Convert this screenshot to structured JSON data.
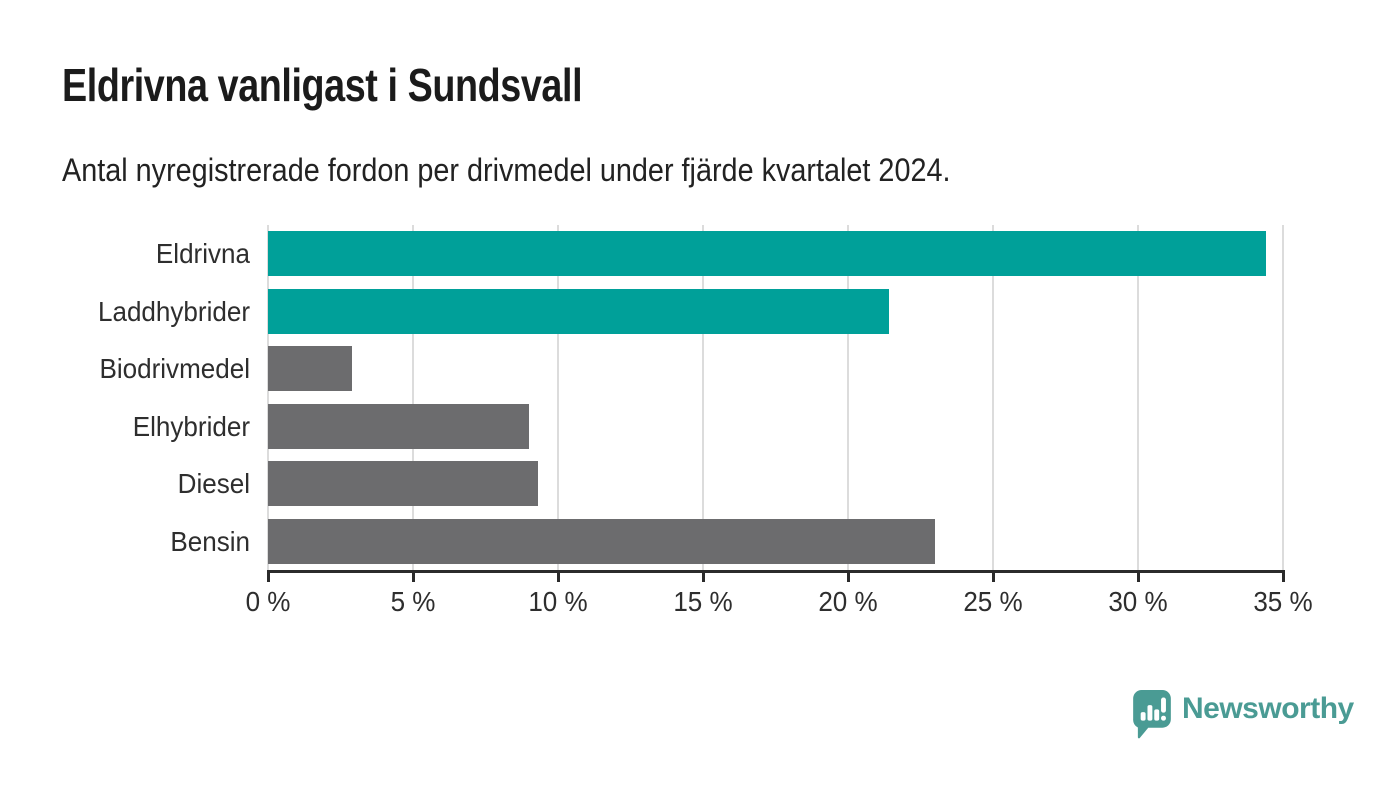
{
  "header": {
    "title": "Eldrivna vanligast i Sundsvall",
    "subtitle": "Antal nyregistrerade fordon per drivmedel under fjärde kvartalet 2024."
  },
  "chart_data": {
    "type": "bar",
    "orientation": "horizontal",
    "title": "Eldrivna vanligast i Sundsvall",
    "subtitle": "Antal nyregistrerade fordon per drivmedel under fjärde kvartalet 2024.",
    "categories": [
      "Eldrivna",
      "Laddhybrider",
      "Biodrivmedel",
      "Elhybrider",
      "Diesel",
      "Bensin"
    ],
    "values": [
      34.4,
      21.4,
      2.9,
      9.0,
      9.3,
      23.0
    ],
    "unit": "%",
    "bar_colors": [
      "#00a099",
      "#00a099",
      "#6c6c6e",
      "#6c6c6e",
      "#6c6c6e",
      "#6c6c6e"
    ],
    "accent_color": "#00a099",
    "neutral_color": "#6c6c6e",
    "xlim": [
      0,
      35
    ],
    "x_ticks": [
      0,
      5,
      10,
      15,
      20,
      25,
      30,
      35
    ],
    "x_tick_suffix": " %",
    "grid": true,
    "gridline_color": "#dcdcdc",
    "axis_color": "#2b2b2b",
    "legend": "none"
  },
  "footer": {
    "logo_text": "Newsworthy",
    "logo_color": "#4a9b94",
    "logo_icon": "speech-bubble-bar-chart-icon"
  }
}
